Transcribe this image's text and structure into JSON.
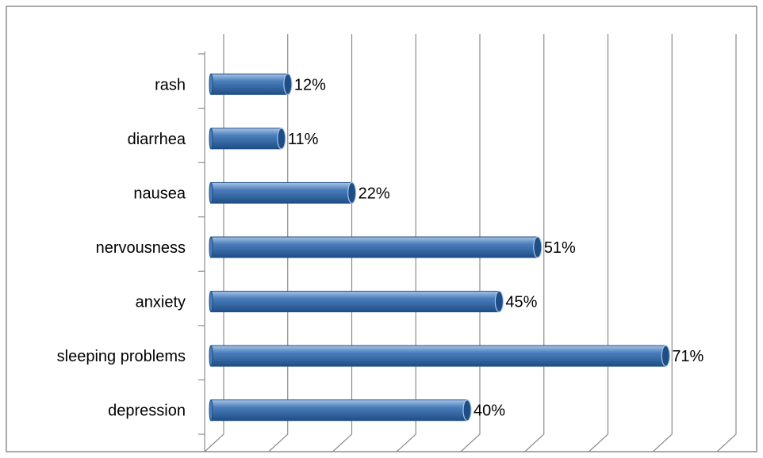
{
  "chart_data": {
    "type": "bar",
    "orientation": "horizontal",
    "style": "3d-cylinder",
    "categories": [
      "rash",
      "diarrhea",
      "nausea",
      "nervousness",
      "anxiety",
      "sleeping problems",
      "depression"
    ],
    "values": [
      12,
      11,
      22,
      51,
      45,
      71,
      40
    ],
    "value_labels": [
      "12%",
      "11%",
      "22%",
      "51%",
      "45%",
      "71%",
      "40%"
    ],
    "xlim": [
      0,
      80
    ],
    "grid": true,
    "legend": "none",
    "colors": {
      "bar": "#4a7ebb",
      "bar_dark": "#1f4e86",
      "bar_light": "#a8c4e6",
      "grid": "#8c8c8c",
      "border": "#8c8c8c"
    }
  }
}
